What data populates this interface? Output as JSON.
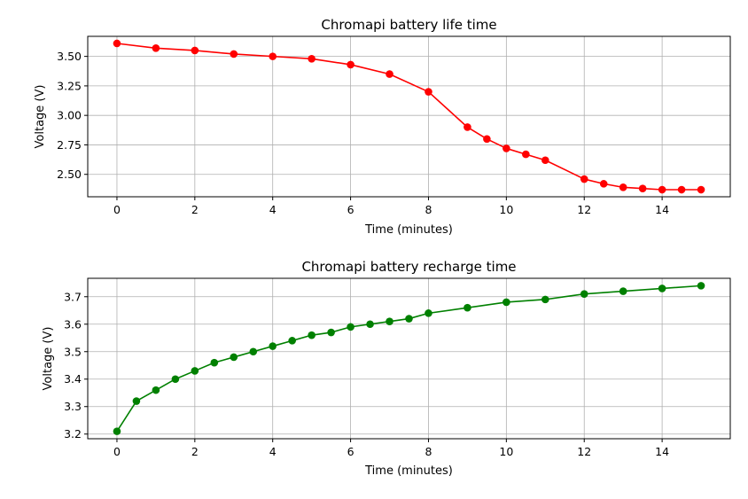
{
  "chart_data": [
    {
      "type": "line",
      "title": "Chromapi battery life time",
      "xlabel": "Time (minutes)",
      "ylabel": "Voltage (V)",
      "xlim": [
        -0.75,
        15.75
      ],
      "ylim": [
        2.31,
        3.67
      ],
      "xticks": [
        0,
        2,
        4,
        6,
        8,
        10,
        12,
        14
      ],
      "yticks": [
        2.5,
        2.75,
        3.0,
        3.25,
        3.5
      ],
      "ytick_labels": [
        "2.50",
        "2.75",
        "3.00",
        "3.25",
        "3.50"
      ],
      "grid": true,
      "color": "#ff0000",
      "marker": "circle",
      "series": [
        {
          "x": [
            0,
            1,
            2,
            3,
            4,
            5,
            6,
            7,
            8,
            9,
            9.5,
            10,
            10.5,
            11,
            12,
            12.5,
            13,
            13.5,
            14,
            14.5,
            15
          ],
          "values": [
            3.61,
            3.57,
            3.55,
            3.52,
            3.5,
            3.48,
            3.43,
            3.35,
            3.2,
            2.9,
            2.8,
            2.72,
            2.67,
            2.62,
            2.46,
            2.42,
            2.39,
            2.38,
            2.37,
            2.37,
            2.37
          ]
        }
      ]
    },
    {
      "type": "line",
      "title": "Chromapi battery recharge time",
      "xlabel": "Time (minutes)",
      "ylabel": "Voltage (V)",
      "xlim": [
        -0.75,
        15.75
      ],
      "ylim": [
        3.183,
        3.767
      ],
      "xticks": [
        0,
        2,
        4,
        6,
        8,
        10,
        12,
        14
      ],
      "yticks": [
        3.2,
        3.3,
        3.4,
        3.5,
        3.6,
        3.7
      ],
      "ytick_labels": [
        "3.2",
        "3.3",
        "3.4",
        "3.5",
        "3.6",
        "3.7"
      ],
      "grid": true,
      "color": "#008000",
      "marker": "circle",
      "series": [
        {
          "x": [
            0,
            0.5,
            1,
            1.5,
            2,
            2.5,
            3,
            3.5,
            4,
            4.5,
            5,
            5.5,
            6,
            6.5,
            7,
            7.5,
            8,
            9,
            10,
            11,
            12,
            13,
            14,
            15
          ],
          "values": [
            3.21,
            3.32,
            3.36,
            3.4,
            3.43,
            3.46,
            3.48,
            3.5,
            3.52,
            3.54,
            3.56,
            3.57,
            3.59,
            3.6,
            3.61,
            3.62,
            3.64,
            3.66,
            3.68,
            3.69,
            3.71,
            3.72,
            3.73,
            3.74
          ]
        }
      ]
    }
  ]
}
